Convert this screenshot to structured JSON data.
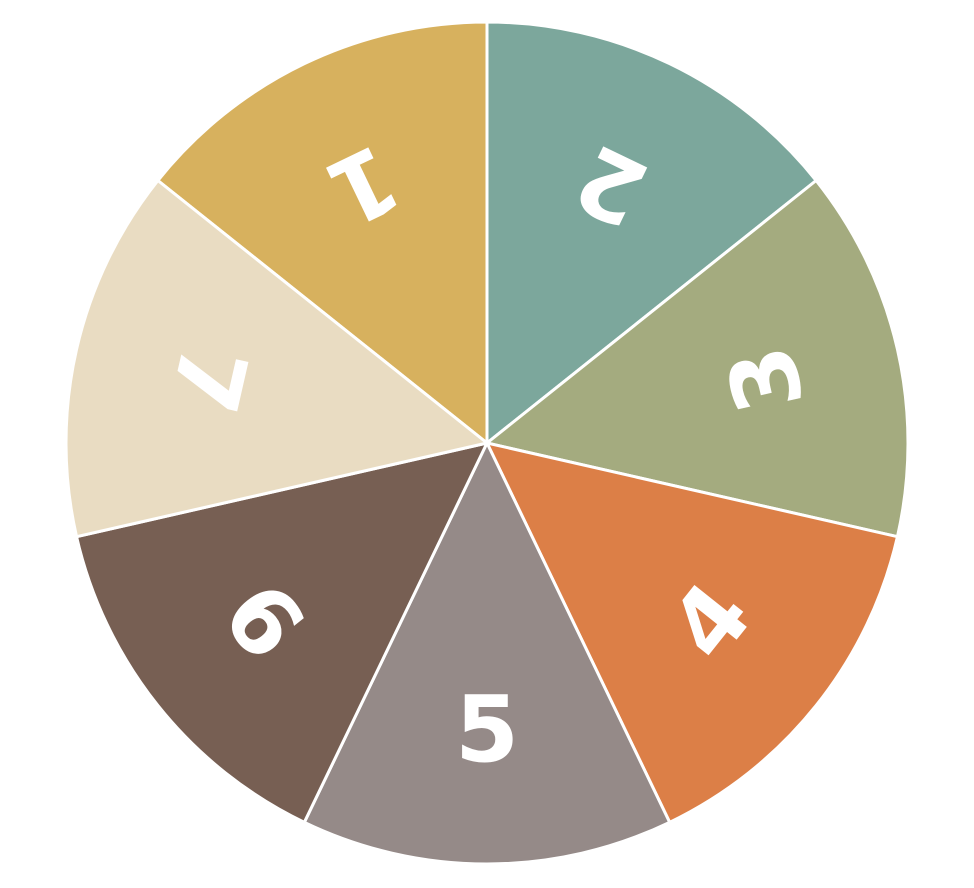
{
  "wheel": {
    "segments": [
      {
        "label": "1",
        "color": "#D7B15E"
      },
      {
        "label": "2",
        "color": "#7CA79C"
      },
      {
        "label": "3",
        "color": "#A4AB7F"
      },
      {
        "label": "4",
        "color": "#DC7F47"
      },
      {
        "label": "5",
        "color": "#958A88"
      },
      {
        "label": "6",
        "color": "#775F53"
      },
      {
        "label": "7",
        "color": "#E9DCC2"
      }
    ]
  }
}
